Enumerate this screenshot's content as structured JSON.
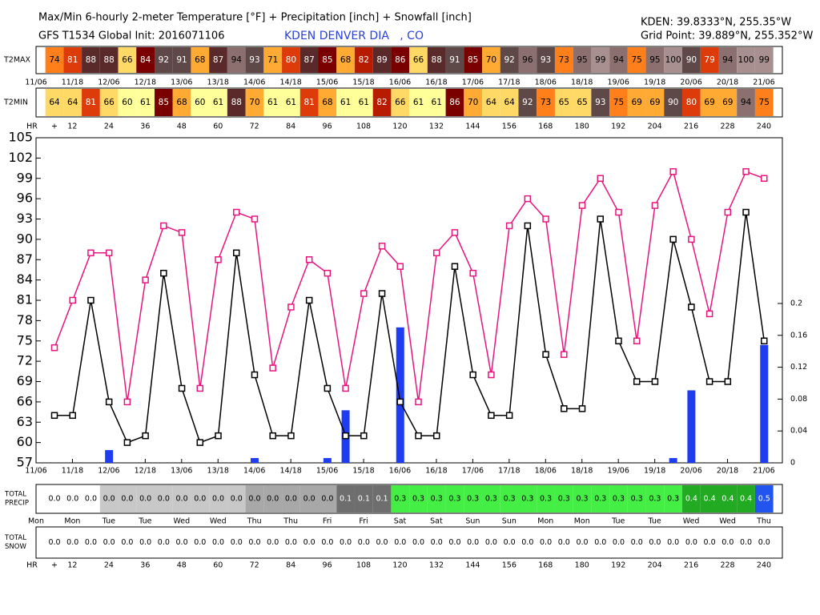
{
  "header": {
    "title": "Max/Min 6-hourly 2-meter Temperature [°F] + Precipitation [inch] + Snowfall [inch]",
    "model": "GFS T1534 Global Init: 2016071106",
    "station": "KDEN DENVER DIA   , CO",
    "station_coords": "KDEN: 39.8333°N, 255.35°W",
    "grid_point": "Grid Point: 39.889°N, 255.352°W"
  },
  "chart_data": {
    "type": "line",
    "ylim": [
      57,
      105
    ],
    "yticks": [
      57,
      60,
      63,
      66,
      69,
      72,
      75,
      78,
      81,
      84,
      87,
      90,
      93,
      96,
      99,
      102,
      105
    ],
    "y2lim": [
      0,
      0.408
    ],
    "y2ticks": [
      0,
      0.04,
      0.08,
      0.12,
      0.16,
      0.2
    ],
    "date_labels": [
      "11/06",
      "11/18",
      "12/06",
      "12/18",
      "13/06",
      "13/18",
      "14/06",
      "14/18",
      "15/06",
      "15/18",
      "16/06",
      "16/18",
      "17/06",
      "17/18",
      "18/06",
      "18/18",
      "19/06",
      "19/18",
      "20/06",
      "20/18",
      "21/06"
    ],
    "day_labels": [
      "Mon",
      "Mon",
      "Tue",
      "Tue",
      "Wed",
      "Wed",
      "Thu",
      "Thu",
      "Fri",
      "Fri",
      "Sat",
      "Sat",
      "Sun",
      "Sun",
      "Mon",
      "Mon",
      "Tue",
      "Tue",
      "Wed",
      "Wed",
      "Thu"
    ],
    "hour_title": "HR",
    "hour_labels": [
      "+",
      12,
      24,
      36,
      48,
      60,
      72,
      84,
      96,
      108,
      120,
      132,
      144,
      156,
      168,
      180,
      192,
      204,
      216,
      228,
      240
    ],
    "series": [
      {
        "name": "T2MAX",
        "color": "#e8157f",
        "values": [
          74,
          81,
          88,
          88,
          66,
          84,
          92,
          91,
          68,
          87,
          94,
          93,
          71,
          80,
          87,
          85,
          68,
          82,
          89,
          86,
          66,
          88,
          91,
          85,
          70,
          92,
          96,
          93,
          73,
          95,
          99,
          94,
          75,
          95,
          100,
          90,
          79,
          94,
          100,
          99
        ],
        "cell_colors": [
          "#ff7f1a",
          "#dd3c0a",
          "#5a2a2a",
          "#5a2a2a",
          "#ffd966",
          "#7a0000",
          "#5e4848",
          "#5e4848",
          "#ffaa33",
          "#5a2a2a",
          "#8c7070",
          "#5e4848",
          "#ffaa33",
          "#dd3c0a",
          "#5a2a2a",
          "#7a0000",
          "#ffaa33",
          "#b81c00",
          "#5a2a2a",
          "#7a0000",
          "#ffd966",
          "#5a2a2a",
          "#5e4848",
          "#7a0000",
          "#ffaa33",
          "#5e4848",
          "#8c7070",
          "#5e4848",
          "#ff7f1a",
          "#8c7070",
          "#a89090",
          "#8c7070",
          "#ff7f1a",
          "#8c7070",
          "#a89090",
          "#5e4848",
          "#dd3c0a",
          "#8c7070",
          "#a89090",
          "#a89090"
        ]
      },
      {
        "name": "T2MIN",
        "color": "#000000",
        "values": [
          64,
          64,
          81,
          66,
          60,
          61,
          85,
          68,
          60,
          61,
          88,
          70,
          61,
          61,
          81,
          68,
          61,
          61,
          82,
          66,
          61,
          61,
          86,
          70,
          64,
          64,
          92,
          73,
          65,
          65,
          93,
          75,
          69,
          69,
          90,
          80,
          69,
          69,
          94,
          75
        ],
        "cell_colors": [
          "#ffd966",
          "#ffd966",
          "#dd3c0a",
          "#ffd966",
          "#ffff99",
          "#ffff99",
          "#7a0000",
          "#ffaa33",
          "#ffff99",
          "#ffff99",
          "#5a2a2a",
          "#ffaa33",
          "#ffff99",
          "#ffff99",
          "#dd3c0a",
          "#ffaa33",
          "#ffff99",
          "#ffff99",
          "#b81c00",
          "#ffd966",
          "#ffff99",
          "#ffff99",
          "#7a0000",
          "#ffaa33",
          "#ffd966",
          "#ffd966",
          "#5e4848",
          "#ff7f1a",
          "#ffd966",
          "#ffd966",
          "#5e4848",
          "#ff7f1a",
          "#ffaa33",
          "#ffaa33",
          "#5e4848",
          "#dd3c0a",
          "#ffaa33",
          "#ffaa33",
          "#8c7070",
          "#ff7f1a"
        ]
      }
    ],
    "precip": {
      "axis": "y2",
      "color": "#1f3df0",
      "values": [
        0,
        0,
        0,
        0.016,
        0,
        0,
        0,
        0,
        0,
        0,
        0,
        0.006,
        0,
        0,
        0,
        0.006,
        0.066,
        0,
        0,
        0.17,
        0,
        0,
        0,
        0,
        0,
        0,
        0,
        0,
        0,
        0,
        0,
        0,
        0,
        0,
        0.006,
        0.091,
        0,
        0,
        0,
        0.148
      ]
    },
    "total_precip": {
      "label_lines": [
        "TOTAL",
        "PRECIP"
      ],
      "values": [
        0,
        0,
        0,
        0,
        0,
        0,
        0,
        0,
        0,
        0,
        0,
        0,
        0,
        0,
        0,
        0,
        0.1,
        0.1,
        0.1,
        0.3,
        0.3,
        0.3,
        0.3,
        0.3,
        0.3,
        0.3,
        0.3,
        0.3,
        0.3,
        0.3,
        0.3,
        0.3,
        0.3,
        0.3,
        0.3,
        0.4,
        0.4,
        0.4,
        0.4,
        0.5
      ],
      "value_labels": [
        "0.0",
        "0.0",
        "0.0",
        "0.0",
        "0.0",
        "0.0",
        "0.0",
        "0.0",
        "0.0",
        "0.0",
        "0.0",
        "0.0",
        "0.0",
        "0.0",
        "0.0",
        "0.0",
        "0.1",
        "0.1",
        "0.1",
        "0.3",
        "0.3",
        "0.3",
        "0.3",
        "0.3",
        "0.3",
        "0.3",
        "0.3",
        "0.3",
        "0.3",
        "0.3",
        "0.3",
        "0.3",
        "0.3",
        "0.3",
        "0.3",
        "0.4",
        "0.4",
        "0.4",
        "0.4",
        "0.5"
      ],
      "cell_colors": [
        "#ffffff",
        "#ffffff",
        "#ffffff",
        "#c8c8c8",
        "#c8c8c8",
        "#c8c8c8",
        "#c8c8c8",
        "#c8c8c8",
        "#c8c8c8",
        "#c8c8c8",
        "#c8c8c8",
        "#a8a8a8",
        "#a8a8a8",
        "#a8a8a8",
        "#a8a8a8",
        "#a8a8a8",
        "#6e6e6e",
        "#6e6e6e",
        "#6e6e6e",
        "#44ee44",
        "#44ee44",
        "#44ee44",
        "#44ee44",
        "#44ee44",
        "#44ee44",
        "#44ee44",
        "#44ee44",
        "#44ee44",
        "#44ee44",
        "#44ee44",
        "#44ee44",
        "#44ee44",
        "#44ee44",
        "#44ee44",
        "#44ee44",
        "#22aa22",
        "#22aa22",
        "#22aa22",
        "#22aa22",
        "#2255ee"
      ]
    },
    "total_snow": {
      "label_lines": [
        "TOTAL",
        "SNOW"
      ],
      "values": [
        0,
        0,
        0,
        0,
        0,
        0,
        0,
        0,
        0,
        0,
        0,
        0,
        0,
        0,
        0,
        0,
        0,
        0,
        0,
        0,
        0,
        0,
        0,
        0,
        0,
        0,
        0,
        0,
        0,
        0,
        0,
        0,
        0,
        0,
        0,
        0,
        0,
        0,
        0,
        0
      ],
      "value_labels": [
        "0.0",
        "0.0",
        "0.0",
        "0.0",
        "0.0",
        "0.0",
        "0.0",
        "0.0",
        "0.0",
        "0.0",
        "0.0",
        "0.0",
        "0.0",
        "0.0",
        "0.0",
        "0.0",
        "0.0",
        "0.0",
        "0.0",
        "0.0",
        "0.0",
        "0.0",
        "0.0",
        "0.0",
        "0.0",
        "0.0",
        "0.0",
        "0.0",
        "0.0",
        "0.0",
        "0.0",
        "0.0",
        "0.0",
        "0.0",
        "0.0",
        "0.0",
        "0.0",
        "0.0",
        "0.0",
        "0.0"
      ]
    }
  }
}
